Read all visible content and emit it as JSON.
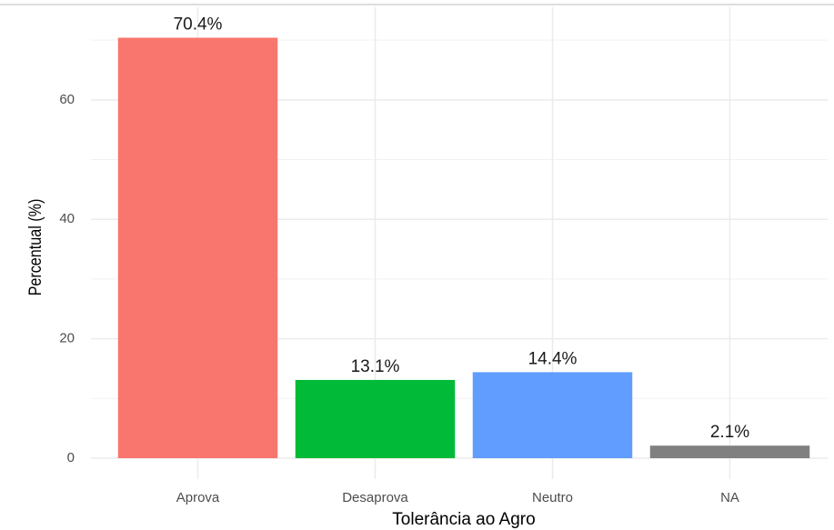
{
  "chart_data": {
    "type": "bar",
    "x_label": "Tolerância ao Agro",
    "y_label": "Percentual (%)",
    "categories": [
      "Aprova",
      "Desaprova",
      "Neutro",
      "NA"
    ],
    "values": [
      70.4,
      13.1,
      14.4,
      2.1
    ],
    "value_labels": [
      "70.4%",
      "13.1%",
      "14.4%",
      "2.1%"
    ],
    "colors": [
      "#F8766D",
      "#00BA38",
      "#619CFF",
      "#808080"
    ],
    "ylim": [
      -3.5,
      75.5
    ],
    "yticks": [
      0,
      20,
      40,
      60
    ],
    "minor_yticks": [
      10,
      30,
      50,
      70
    ],
    "grid": true
  }
}
